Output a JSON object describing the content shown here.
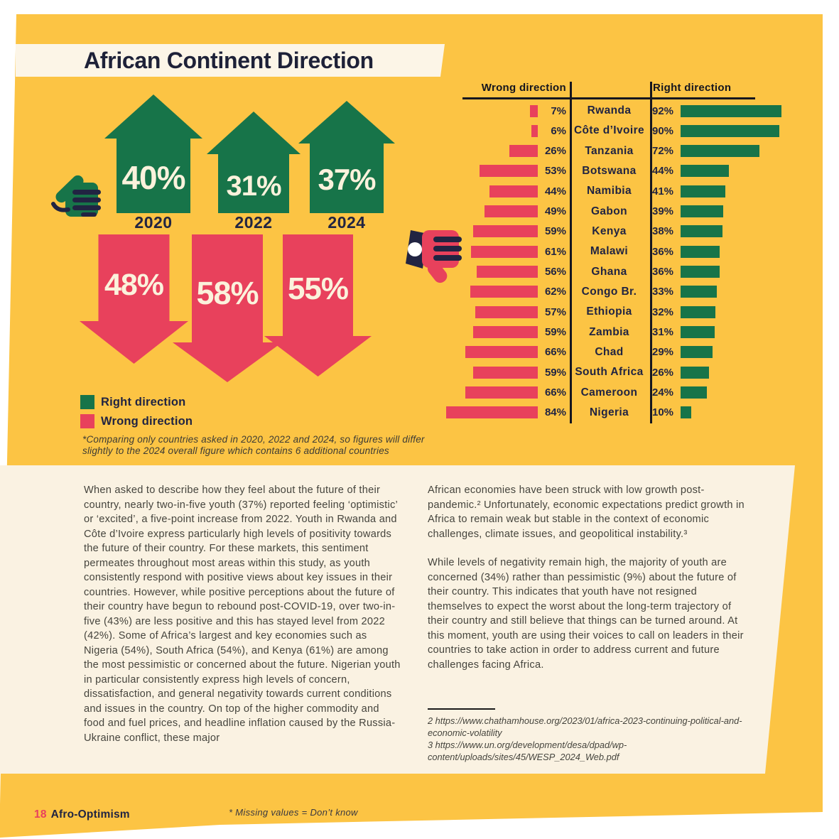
{
  "page": {
    "title": "African Continent Direction",
    "colors": {
      "yellow": "#FCC444",
      "cream_banner": "#FCF5E7",
      "cream_panel": "#FAF2E2",
      "green": "#177449",
      "red": "#E8415C",
      "navy": "#212442"
    },
    "footer": {
      "page_number": "18",
      "brand": "Afro-Optimism",
      "missing_note": "* Missing values = Don’t know"
    }
  },
  "icons": {
    "positive": "thumbs-up-icon",
    "negative": "thumbs-down-icon"
  },
  "trend": {
    "years": [
      {
        "year": "2020",
        "up": "40%",
        "down": "48%"
      },
      {
        "year": "2022",
        "up": "31%",
        "down": "58%"
      },
      {
        "year": "2024",
        "up": "37%",
        "down": "55%"
      }
    ],
    "legend": [
      {
        "label": "Right direction",
        "color": "#177449"
      },
      {
        "label": "Wrong direction",
        "color": "#E8415C"
      }
    ],
    "footnote": "*Comparing only countries asked in 2020, 2022 and 2024, so figures will differ slightly to the 2024 overall figure which contains 6 additional countries"
  },
  "chart_data": {
    "type": "bar",
    "unit": "%",
    "headers": {
      "wrong": "Wrong direction",
      "right": "Right direction"
    },
    "categories": [
      "Rwanda",
      "Côte d’Ivoire",
      "Tanzania",
      "Botswana",
      "Namibia",
      "Gabon",
      "Kenya",
      "Malawi",
      "Ghana",
      "Congo Br.",
      "Ethiopia",
      "Zambia",
      "Chad",
      "South Africa",
      "Cameroon",
      "Nigeria"
    ],
    "series": [
      {
        "name": "Wrong direction",
        "color": "#E8415C",
        "values": [
          7,
          6,
          26,
          53,
          44,
          49,
          59,
          61,
          56,
          62,
          57,
          59,
          66,
          59,
          66,
          84
        ]
      },
      {
        "name": "Right direction",
        "color": "#177449",
        "values": [
          92,
          90,
          72,
          44,
          41,
          39,
          38,
          36,
          36,
          33,
          32,
          31,
          29,
          26,
          24,
          10
        ]
      }
    ],
    "axis_max": 100,
    "grid": false,
    "legend_position": "left-bottom"
  },
  "article": {
    "left_column": [
      "When asked to describe how they feel about the future of their country, nearly two-in-five youth (37%) reported feeling ‘optimistic’ or ‘excited’, a five-point increase from 2022. Youth in Rwanda and Côte d’Ivoire express particularly high levels of positivity towards the future of their country. For these markets, this sentiment permeates throughout most areas within this study, as youth consistently respond with positive views about key issues in their countries. However, while positive perceptions about the future of their country have begun to rebound post-COVID-19, over two-in-five (43%) are less positive and this has stayed level from 2022 (42%). Some of Africa’s largest and key economies such as Nigeria (54%), South Africa (54%), and Kenya (61%) are among the most pessimistic or concerned about the future. Nigerian youth in particular consistently express high levels of concern, dissatisfaction, and general negativity towards current conditions and issues in the country. On top of the higher commodity and food and fuel prices, and headline inflation caused by the Russia-Ukraine conflict, these major"
    ],
    "right_column": [
      "African economies have been struck with low growth post-pandemic.² Unfortunately, economic expectations predict growth in Africa to remain weak but stable in the context of economic challenges, climate issues, and geopolitical instability.³",
      "While levels of negativity remain high, the majority of youth are concerned (34%) rather than pessimistic (9%) about the future of their country. This indicates that youth have not resigned themselves to expect the worst about the long-term trajectory of their country and still believe that things can be turned around. At this moment, youth are using their voices to call on leaders in their countries to take action in order to address current and future challenges facing Africa."
    ],
    "footnotes": [
      "2  https://www.chathamhouse.org/2023/01/africa-2023-continuing-political-and-economic-volatility",
      "3  https://www.un.org/development/desa/dpad/wp-content/uploads/sites/45/WESP_2024_Web.pdf"
    ]
  }
}
